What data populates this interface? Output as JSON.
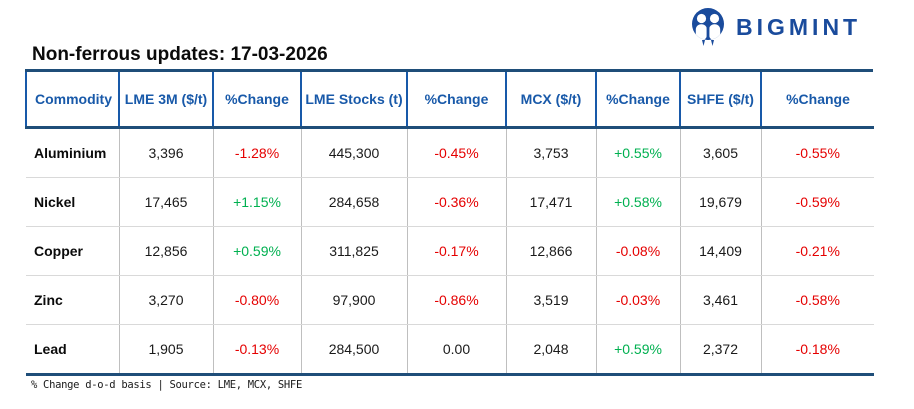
{
  "brand": {
    "name": "BIGMINT",
    "logo_icon": "two-people-circle-logo",
    "brand_blue": "#1a4b9c"
  },
  "title": "Non-ferrous updates: 17-03-2026",
  "table": {
    "headers": [
      "Commodity",
      "LME 3M ($/t)",
      "%Change",
      "LME Stocks (t)",
      "%Change",
      "MCX ($/t)",
      "%Change",
      "SHFE ($/t)",
      "%Change"
    ],
    "rows": [
      [
        "Aluminium",
        "3,396",
        "-1.28%",
        "445,300",
        "-0.45%",
        "3,753",
        "+0.55%",
        "3,605",
        "-0.55%"
      ],
      [
        "Nickel",
        "17,465",
        "+1.15%",
        "284,658",
        "-0.36%",
        "17,471",
        "+0.58%",
        "19,679",
        "-0.59%"
      ],
      [
        "Copper",
        "12,856",
        "+0.59%",
        "311,825",
        "-0.17%",
        "12,866",
        "-0.08%",
        "14,409",
        "-0.21%"
      ],
      [
        "Zinc",
        "3,270",
        "-0.80%",
        "97,900",
        "-0.86%",
        "3,519",
        "-0.03%",
        "3,461",
        "-0.58%"
      ],
      [
        "Lead",
        "1,905",
        "-0.13%",
        "284,500",
        "0.00",
        "2,048",
        "+0.59%",
        "2,372",
        "-0.18%"
      ]
    ]
  },
  "footer": {
    "note": "% Change d-o-d basis | Source: LME, MCX, SHFE"
  },
  "colors": {
    "positive": "#00b050",
    "negative": "#e50000",
    "neutral": "#1a1a1a",
    "header_blue": "#1859a9",
    "rule_navy": "#1f4e79"
  }
}
